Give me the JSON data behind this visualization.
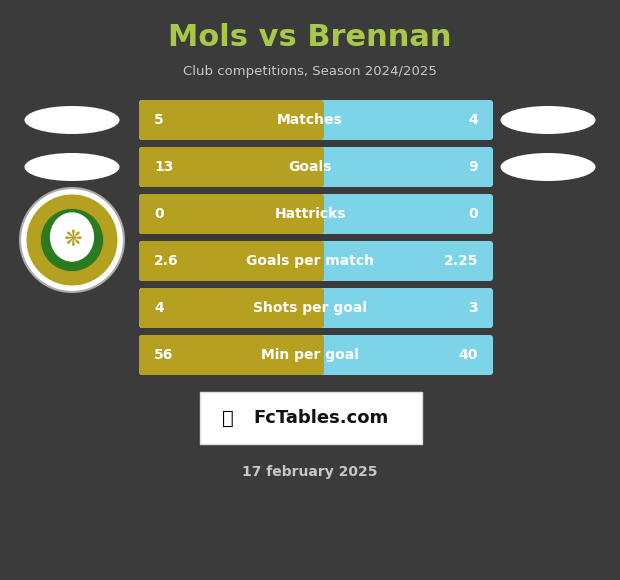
{
  "title": "Mols vs Brennan",
  "subtitle": "Club competitions, Season 2024/2025",
  "date": "17 february 2025",
  "background_color": "#3b3b3b",
  "title_color": "#a8c84a",
  "subtitle_color": "#c8c8c8",
  "date_color": "#c8c8c8",
  "bar_left_color": "#b5a020",
  "bar_right_color": "#7dd4e8",
  "rows": [
    {
      "label": "Matches",
      "left": "5",
      "right": "4"
    },
    {
      "label": "Goals",
      "left": "13",
      "right": "9"
    },
    {
      "label": "Hattricks",
      "left": "0",
      "right": "0"
    },
    {
      "label": "Goals per match",
      "left": "2.6",
      "right": "2.25"
    },
    {
      "label": "Shots per goal",
      "left": "4",
      "right": "3"
    },
    {
      "label": "Min per goal",
      "left": "56",
      "right": "40"
    }
  ]
}
